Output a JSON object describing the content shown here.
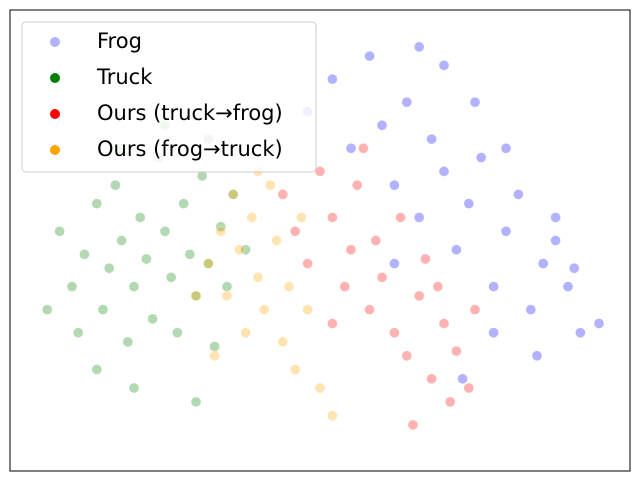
{
  "chart_data": {
    "type": "scatter",
    "xlim": [
      0,
      100
    ],
    "ylim": [
      0,
      100
    ],
    "point_opacity": 0.3,
    "legend": "upper left",
    "series": [
      {
        "name": "Frog",
        "color": "#0000ff",
        "x": [
          48,
          52,
          55,
          58,
          60,
          62,
          64,
          66,
          68,
          70,
          72,
          74,
          76,
          78,
          80,
          82,
          84,
          86,
          88,
          90,
          92,
          95,
          70,
          66,
          75,
          80,
          85,
          88,
          62,
          78,
          73,
          91
        ],
        "values": [
          78,
          85,
          70,
          90,
          75,
          62,
          80,
          55,
          72,
          65,
          48,
          58,
          68,
          40,
          52,
          60,
          35,
          45,
          50,
          40,
          30,
          32,
          88,
          92,
          80,
          70,
          25,
          55,
          45,
          30,
          20,
          44
        ]
      },
      {
        "name": "Truck",
        "color": "#008000",
        "x": [
          8,
          10,
          12,
          14,
          15,
          16,
          17,
          18,
          19,
          20,
          21,
          22,
          23,
          24,
          25,
          26,
          27,
          28,
          29,
          30,
          31,
          32,
          33,
          34,
          35,
          36,
          14,
          20,
          30,
          6,
          38,
          25,
          18,
          11,
          32
        ],
        "values": [
          52,
          40,
          47,
          58,
          35,
          44,
          62,
          50,
          28,
          40,
          55,
          46,
          33,
          68,
          52,
          42,
          30,
          58,
          47,
          38,
          64,
          45,
          27,
          53,
          40,
          60,
          22,
          18,
          15,
          35,
          48,
          75,
          70,
          30,
          72
        ]
      },
      {
        "name": "Ours (truck→frog)",
        "color": "#ff0000",
        "x": [
          44,
          46,
          48,
          50,
          52,
          54,
          55,
          56,
          58,
          59,
          60,
          62,
          63,
          64,
          66,
          67,
          68,
          70,
          71,
          72,
          74,
          65,
          52,
          57,
          69,
          75
        ],
        "values": [
          60,
          52,
          45,
          65,
          55,
          40,
          48,
          62,
          35,
          50,
          42,
          30,
          55,
          25,
          38,
          46,
          20,
          32,
          15,
          26,
          18,
          10,
          32,
          70,
          40,
          35
        ]
      },
      {
        "name": "Ours (frog→truck)",
        "color": "#ffa500",
        "x": [
          32,
          34,
          35,
          36,
          37,
          38,
          39,
          40,
          41,
          42,
          43,
          44,
          45,
          46,
          47,
          48,
          50,
          52,
          40,
          30,
          33
        ],
        "values": [
          45,
          52,
          38,
          60,
          48,
          30,
          55,
          42,
          35,
          62,
          50,
          28,
          40,
          22,
          55,
          35,
          18,
          12,
          65,
          38,
          25
        ]
      }
    ]
  }
}
